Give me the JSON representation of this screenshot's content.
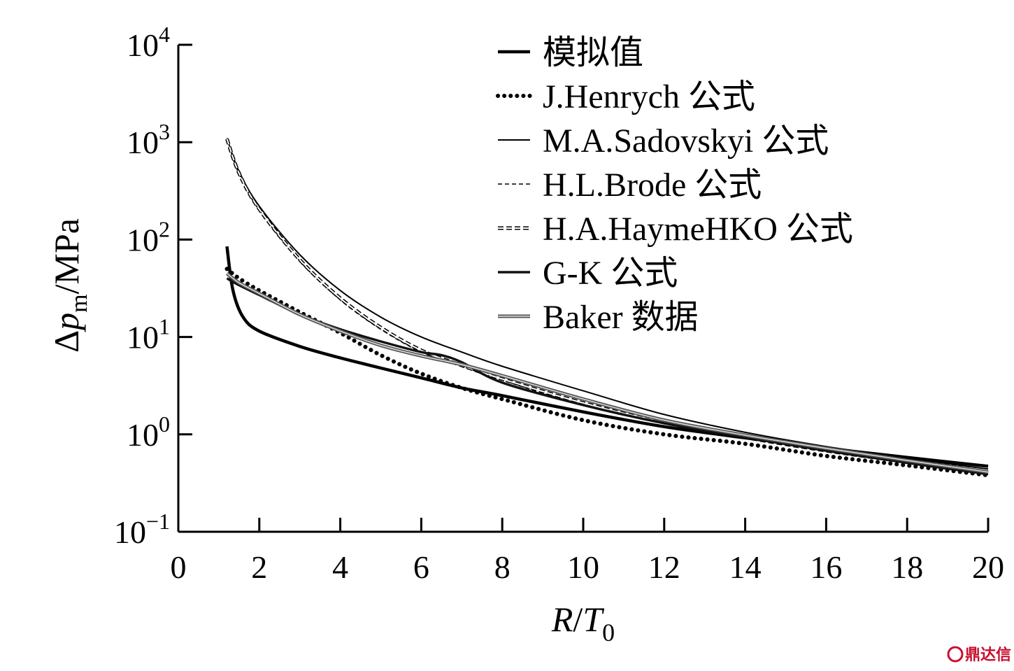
{
  "chart_data": {
    "type": "line",
    "x_axis": {
      "label_italic": "R",
      "label_slash": "/",
      "label_italic2": "T",
      "label_sub": "0",
      "min": 0,
      "max": 20,
      "ticks": [
        0,
        2,
        4,
        6,
        8,
        10,
        12,
        14,
        16,
        18,
        20
      ],
      "tick_labels": [
        "0",
        "2",
        "4",
        "6",
        "8",
        "10",
        "12",
        "14",
        "16",
        "18",
        "20"
      ]
    },
    "y_axis": {
      "label_delta": "Δ",
      "label_italic": "p",
      "label_sub": "m",
      "label_unit": "/MPa",
      "scale": "log",
      "min": 0.1,
      "max": 10000,
      "ticks": [
        0.1,
        1,
        10,
        100,
        1000,
        10000
      ],
      "tick_base": "10",
      "tick_exponents": [
        "−1",
        "0",
        "1",
        "2",
        "3",
        "4"
      ]
    },
    "legend_position": "top-right",
    "series": [
      {
        "name": "模拟值",
        "style": "thick-solid",
        "x": [
          1.2,
          1.35,
          1.6,
          2,
          3,
          4,
          5,
          6,
          7,
          8,
          10,
          12,
          14,
          16,
          18,
          20
        ],
        "y": [
          85,
          30,
          16,
          11.5,
          8.0,
          6.1,
          4.8,
          3.8,
          3.0,
          2.5,
          1.7,
          1.2,
          0.92,
          0.72,
          0.58,
          0.47
        ]
      },
      {
        "name": "J.Henrych 公式",
        "style": "dotted",
        "x": [
          1.2,
          1.5,
          2,
          3,
          4,
          5,
          6,
          7,
          8,
          10,
          12,
          14,
          16,
          18,
          20
        ],
        "y": [
          50,
          40,
          30,
          18,
          11,
          6.5,
          4.2,
          3.0,
          2.3,
          1.4,
          1.0,
          0.8,
          0.6,
          0.48,
          0.38
        ]
      },
      {
        "name": "M.A.Sadovskyi 公式",
        "style": "thin-solid",
        "x": [
          1.2,
          1.5,
          2,
          3,
          4,
          5,
          6,
          7,
          8,
          10,
          12,
          14,
          16,
          18,
          20
        ],
        "y": [
          1100,
          500,
          220,
          70,
          30,
          16,
          10,
          7.0,
          5.0,
          2.8,
          1.6,
          1.05,
          0.75,
          0.57,
          0.44
        ]
      },
      {
        "name": "H.L.Brode 公式",
        "style": "thin-dashed",
        "x": [
          1.2,
          1.5,
          2,
          3,
          4,
          5,
          6,
          7,
          8,
          10,
          12,
          14,
          16,
          18,
          20
        ],
        "y": [
          1050,
          470,
          200,
          60,
          24,
          12,
          7.0,
          5.0,
          3.6,
          2.0,
          1.3,
          0.95,
          0.72,
          0.56,
          0.44
        ]
      },
      {
        "name": "H.A.HaymeHKO 公式",
        "style": "double-dashed",
        "x": [
          1.2,
          1.5,
          2,
          3,
          4,
          5,
          6,
          7,
          8,
          10,
          12,
          14,
          16,
          18,
          20
        ],
        "y": [
          1080,
          480,
          205,
          62,
          25,
          12.5,
          7.3,
          5.1,
          3.7,
          2.1,
          1.32,
          0.93,
          0.68,
          0.52,
          0.4
        ]
      },
      {
        "name": "G-K 公式",
        "style": "thick-solid-2",
        "x": [
          1.2,
          1.5,
          2,
          3,
          4,
          5,
          6,
          6.5,
          7,
          8,
          10,
          12,
          14,
          16,
          18,
          20
        ],
        "y": [
          40,
          34,
          27,
          17,
          12,
          9.0,
          7.0,
          6.5,
          5.5,
          3.4,
          2.0,
          1.3,
          0.93,
          0.68,
          0.51,
          0.39
        ]
      },
      {
        "name": "Baker 数据",
        "style": "grey-solid",
        "x": [
          1.2,
          1.5,
          2,
          3,
          4,
          5,
          6,
          7,
          8,
          10,
          12,
          14,
          16,
          18,
          20
        ],
        "y": [
          45,
          36,
          28,
          17,
          11.5,
          8.2,
          6.4,
          5.2,
          4.0,
          2.3,
          1.4,
          0.98,
          0.72,
          0.54,
          0.41
        ]
      }
    ]
  },
  "watermark": {
    "icon": "watermark-logo-icon",
    "text": "鼎达信"
  }
}
